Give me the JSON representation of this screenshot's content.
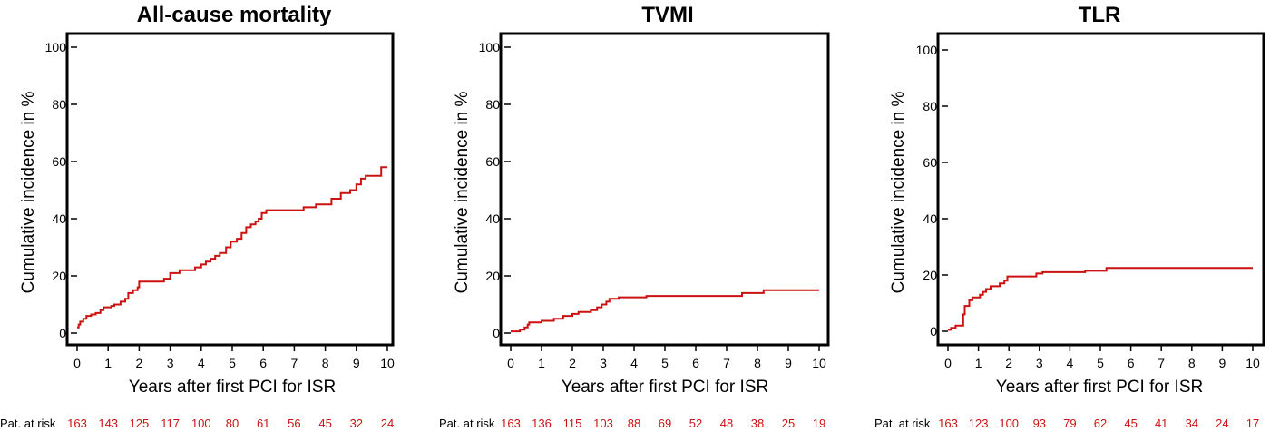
{
  "chart_data": [
    {
      "type": "line",
      "title": "All-cause mortality",
      "xlabel": "Years after first PCI for ISR",
      "ylabel": "Cumulative incidence in %",
      "xlim": [
        0,
        10
      ],
      "ylim": [
        0,
        100
      ],
      "x_ticks": [
        "0",
        "1",
        "2",
        "3",
        "4",
        "5",
        "6",
        "7",
        "8",
        "9",
        "10"
      ],
      "y_ticks": [
        "0",
        "20",
        "40",
        "60",
        "80",
        "100"
      ],
      "line_color": "#cc1111",
      "grid": false,
      "series": [
        {
          "step_points": [
            [
              0,
              2
            ],
            [
              0.05,
              3
            ],
            [
              0.1,
              4
            ],
            [
              0.2,
              5
            ],
            [
              0.3,
              6
            ],
            [
              0.45,
              6.5
            ],
            [
              0.6,
              7
            ],
            [
              0.75,
              8
            ],
            [
              0.85,
              9
            ],
            [
              1.1,
              9.5
            ],
            [
              1.2,
              10
            ],
            [
              1.4,
              11
            ],
            [
              1.55,
              12
            ],
            [
              1.65,
              14
            ],
            [
              1.8,
              15
            ],
            [
              1.95,
              16
            ],
            [
              2.0,
              18
            ],
            [
              2.7,
              18
            ],
            [
              2.8,
              19
            ],
            [
              3.0,
              21
            ],
            [
              3.3,
              22
            ],
            [
              3.8,
              23
            ],
            [
              4.0,
              24
            ],
            [
              4.15,
              25
            ],
            [
              4.3,
              26
            ],
            [
              4.45,
              27
            ],
            [
              4.6,
              28
            ],
            [
              4.8,
              30
            ],
            [
              4.95,
              32
            ],
            [
              5.15,
              33
            ],
            [
              5.3,
              35
            ],
            [
              5.45,
              37
            ],
            [
              5.6,
              38
            ],
            [
              5.75,
              39
            ],
            [
              5.85,
              40
            ],
            [
              5.95,
              42
            ],
            [
              6.1,
              43
            ],
            [
              7.0,
              43
            ],
            [
              7.3,
              44
            ],
            [
              7.7,
              45
            ],
            [
              8.2,
              47
            ],
            [
              8.5,
              49
            ],
            [
              8.8,
              50
            ],
            [
              9.0,
              52
            ],
            [
              9.15,
              54
            ],
            [
              9.3,
              55
            ],
            [
              9.8,
              58
            ],
            [
              10.0,
              58
            ]
          ]
        }
      ],
      "at_risk": {
        "label": "Pat. at risk",
        "values": [
          "163",
          "143",
          "125",
          "117",
          "100",
          "80",
          "61",
          "56",
          "45",
          "32",
          "24"
        ]
      }
    },
    {
      "type": "line",
      "title": "TVMI",
      "xlabel": "Years after first PCI for ISR",
      "ylabel": "Cumulative incidence in %",
      "xlim": [
        0,
        10
      ],
      "ylim": [
        0,
        100
      ],
      "x_ticks": [
        "0",
        "1",
        "2",
        "3",
        "4",
        "5",
        "6",
        "7",
        "8",
        "9",
        "10"
      ],
      "y_ticks": [
        "0",
        "20",
        "40",
        "60",
        "80",
        "100"
      ],
      "line_color": "#cc1111",
      "grid": false,
      "series": [
        {
          "step_points": [
            [
              0,
              0.6
            ],
            [
              0.3,
              1.2
            ],
            [
              0.45,
              2
            ],
            [
              0.55,
              3
            ],
            [
              0.6,
              3.7
            ],
            [
              1.0,
              4.3
            ],
            [
              1.4,
              5
            ],
            [
              1.7,
              6
            ],
            [
              2.0,
              6.7
            ],
            [
              2.2,
              7.4
            ],
            [
              2.6,
              8
            ],
            [
              2.8,
              9
            ],
            [
              2.95,
              10
            ],
            [
              3.1,
              11
            ],
            [
              3.2,
              12
            ],
            [
              3.5,
              12.5
            ],
            [
              4.4,
              13
            ],
            [
              7.5,
              14
            ],
            [
              8.2,
              15
            ],
            [
              10.0,
              15
            ]
          ]
        }
      ],
      "at_risk": {
        "label": "Pat. at risk",
        "values": [
          "163",
          "136",
          "115",
          "103",
          "88",
          "69",
          "52",
          "48",
          "38",
          "25",
          "19"
        ]
      }
    },
    {
      "type": "line",
      "title": "TLR",
      "xlabel": "Years after first PCI for ISR",
      "ylabel": "Cumulative incidence in %",
      "xlim": [
        0,
        10
      ],
      "ylim": [
        0,
        100
      ],
      "x_ticks": [
        "0",
        "1",
        "2",
        "3",
        "4",
        "5",
        "6",
        "7",
        "8",
        "9",
        "10"
      ],
      "y_ticks": [
        "0",
        "20",
        "40",
        "60",
        "80",
        "100"
      ],
      "line_color": "#cc1111",
      "grid": false,
      "series": [
        {
          "step_points": [
            [
              0,
              0.5
            ],
            [
              0.1,
              1.2
            ],
            [
              0.25,
              2
            ],
            [
              0.5,
              6
            ],
            [
              0.55,
              9
            ],
            [
              0.7,
              11
            ],
            [
              0.8,
              12
            ],
            [
              1.05,
              13
            ],
            [
              1.15,
              14
            ],
            [
              1.25,
              15
            ],
            [
              1.4,
              16
            ],
            [
              1.7,
              17
            ],
            [
              1.85,
              18
            ],
            [
              1.95,
              19.5
            ],
            [
              2.9,
              20.5
            ],
            [
              3.1,
              21
            ],
            [
              4.5,
              21.5
            ],
            [
              5.2,
              22.5
            ],
            [
              10.0,
              22.5
            ]
          ]
        }
      ],
      "at_risk": {
        "label": "Pat. at risk",
        "values": [
          "163",
          "123",
          "100",
          "93",
          "79",
          "62",
          "45",
          "41",
          "34",
          "24",
          "17"
        ]
      }
    }
  ]
}
